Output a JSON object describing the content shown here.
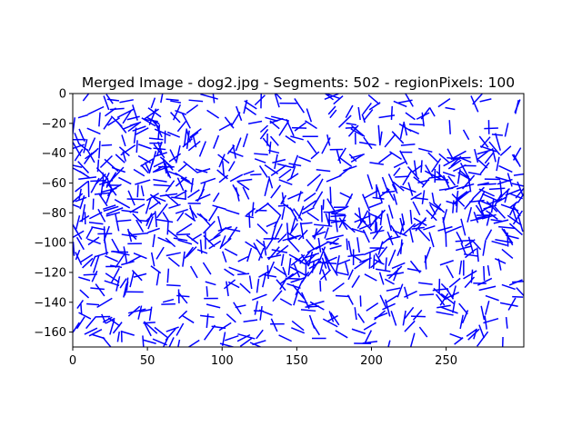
{
  "chart_data": {
    "type": "line",
    "title": "Merged Image - dog2.jpg - Segments: 502 - regionPixels: 100",
    "xlabel": "",
    "ylabel": "",
    "xlim": [
      0,
      302
    ],
    "ylim": [
      -170,
      0
    ],
    "x_ticks": [
      0,
      50,
      100,
      150,
      200,
      250
    ],
    "x_tick_labels": [
      "0",
      "50",
      "100",
      "150",
      "200",
      "250"
    ],
    "y_ticks": [
      0,
      -20,
      -40,
      -60,
      -80,
      -100,
      -120,
      -140,
      -160
    ],
    "y_tick_labels": [
      "0",
      "−20",
      "−40",
      "−60",
      "−80",
      "−100",
      "−120",
      "−140",
      "−160"
    ],
    "grid": false,
    "line_color": "#0000ff",
    "segment_count": 502,
    "segment_length": 9.5,
    "dense_regions": [
      {
        "x": [
          0,
          82
        ],
        "y": [
          -100,
          -10
        ]
      },
      {
        "x": [
          130,
          210
        ],
        "y": [
          -125,
          -65
        ]
      },
      {
        "x": [
          210,
          302
        ],
        "y": [
          -105,
          -40
        ]
      }
    ],
    "segments": [
      {
        "x": [
          8.9,
          15.6
        ],
        "y": [
          -157.6,
          -149.5
        ]
      },
      {
        "x": [
          115.4,
          121.1
        ],
        "y": [
          -82.1,
          -83.2
        ]
      },
      {
        "x": [
          195.6,
          193.8
        ],
        "y": [
          -19.5,
          -13.9
        ]
      },
      {
        "x": [
          258.6,
          264.4
        ],
        "y": [
          -140.8,
          -147.9
        ]
      },
      {
        "x": [
          52.3,
          58.9
        ],
        "y": [
          -115.6,
          -120.4
        ]
      },
      {
        "x": [
          231.8,
          225.0
        ],
        "y": [
          -27.0,
          -24.0
        ]
      },
      {
        "x": [
          143.5,
          151.0
        ],
        "y": [
          -58.6,
          -53.6
        ]
      },
      {
        "x": [
          280.4,
          276.6
        ],
        "y": [
          -91.2,
          -98.1
        ]
      }
    ]
  }
}
